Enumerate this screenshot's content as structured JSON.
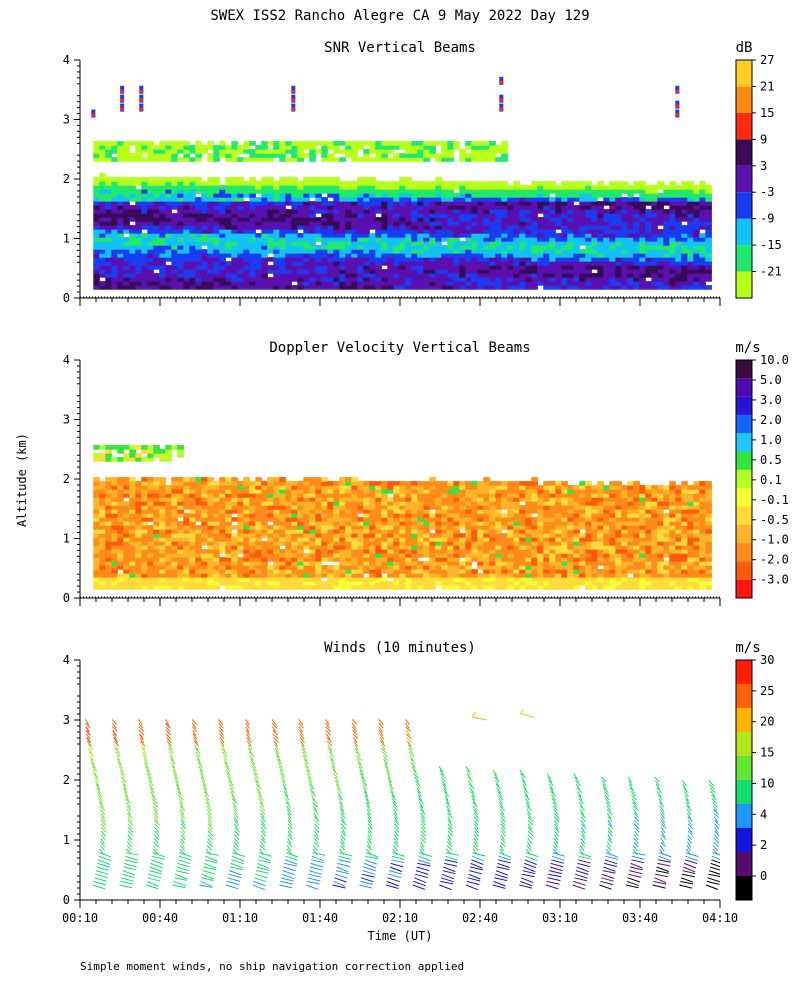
{
  "chart_data": {
    "title": "SWEX ISS2 Rancho Alegre CA   9 May 2022 Day 129",
    "footnote": "Simple moment winds, no ship navigation correction applied",
    "ylabel": "Altitude (km)",
    "xlabel": "Time (UT)",
    "x_tick_labels": [
      "00:10",
      "00:40",
      "01:10",
      "01:40",
      "02:10",
      "02:40",
      "03:10",
      "03:40",
      "04:10"
    ],
    "y_tick_labels": [
      "0",
      "1",
      "2",
      "3",
      "4"
    ],
    "xlim_hours": [
      0.1667,
      4.1667
    ],
    "ylim_km": [
      0,
      4
    ],
    "panels": [
      {
        "type": "heatmap",
        "title": "SNR Vertical Beams",
        "unit": "dB",
        "colorbar": {
          "colors": [
            "#b8ff1a",
            "#20e86a",
            "#12c2f5",
            "#1a3cf0",
            "#5a10b0",
            "#3a0a5a",
            "#ff2a10",
            "#ff8a10",
            "#ffcc22"
          ],
          "labels": [
            "-21",
            "-15",
            "-9",
            "-3",
            "3",
            "9",
            "15",
            "21",
            "27"
          ]
        },
        "valid_range_km": [
          0.15,
          2.0
        ],
        "upper_layer_km": [
          2.3,
          2.6
        ],
        "upper_layer_end_hours": 2.8,
        "sparse_points": [
          {
            "t_hours": 0.25,
            "alt_km": [
              3.1
            ]
          },
          {
            "t_hours": 0.43,
            "alt_km": [
              3.2,
              3.35,
              3.5
            ]
          },
          {
            "t_hours": 0.55,
            "alt_km": [
              3.2,
              3.35,
              3.5
            ]
          },
          {
            "t_hours": 1.5,
            "alt_km": [
              3.2,
              3.35,
              3.5
            ]
          },
          {
            "t_hours": 2.8,
            "alt_km": [
              3.2,
              3.35,
              3.65
            ]
          },
          {
            "t_hours": 3.9,
            "alt_km": [
              3.1,
              3.25,
              3.5
            ]
          }
        ]
      },
      {
        "type": "heatmap",
        "title": "Doppler Velocity Vertical Beams",
        "unit": "m/s",
        "colorbar": {
          "colors": [
            "#ff1414",
            "#ff5a0a",
            "#ff8c1a",
            "#ffb428",
            "#ffdc3c",
            "#f5ff32",
            "#b4ff28",
            "#32e63c",
            "#1ec8ff",
            "#1464ff",
            "#2814d2",
            "#500ab4",
            "#3c0a3c"
          ],
          "labels": [
            "-3.0",
            "-2.0",
            "-1.0",
            "-0.5",
            "-0.1",
            "0.1",
            "0.5",
            "1.0",
            "2.0",
            "3.0",
            "5.0",
            "10.0"
          ]
        },
        "valid_range_km": [
          0.15,
          2.0
        ],
        "upper_layer_km": [
          2.3,
          2.55
        ],
        "upper_layer_end_hours": 0.8
      },
      {
        "type": "wind_barbs",
        "title": "Winds (10 minutes)",
        "unit": "m/s",
        "colorbar": {
          "colors": [
            "#000000",
            "#5a0a6e",
            "#1414dc",
            "#1e96ff",
            "#14dc6e",
            "#64e632",
            "#b4e61e",
            "#ffb400",
            "#ff6400",
            "#ff1e00"
          ],
          "labels": [
            "0",
            "2",
            "4",
            "10",
            "15",
            "20",
            "25",
            "30"
          ]
        },
        "profile_times_hours": [
          0.25,
          0.417,
          0.583,
          0.75,
          0.917,
          1.083,
          1.25,
          1.417,
          1.583,
          1.75,
          1.917,
          2.083,
          2.25,
          2.417,
          2.583,
          2.75,
          2.917,
          3.083,
          3.25,
          3.417,
          3.583,
          3.75,
          3.917,
          4.083
        ]
      }
    ]
  }
}
